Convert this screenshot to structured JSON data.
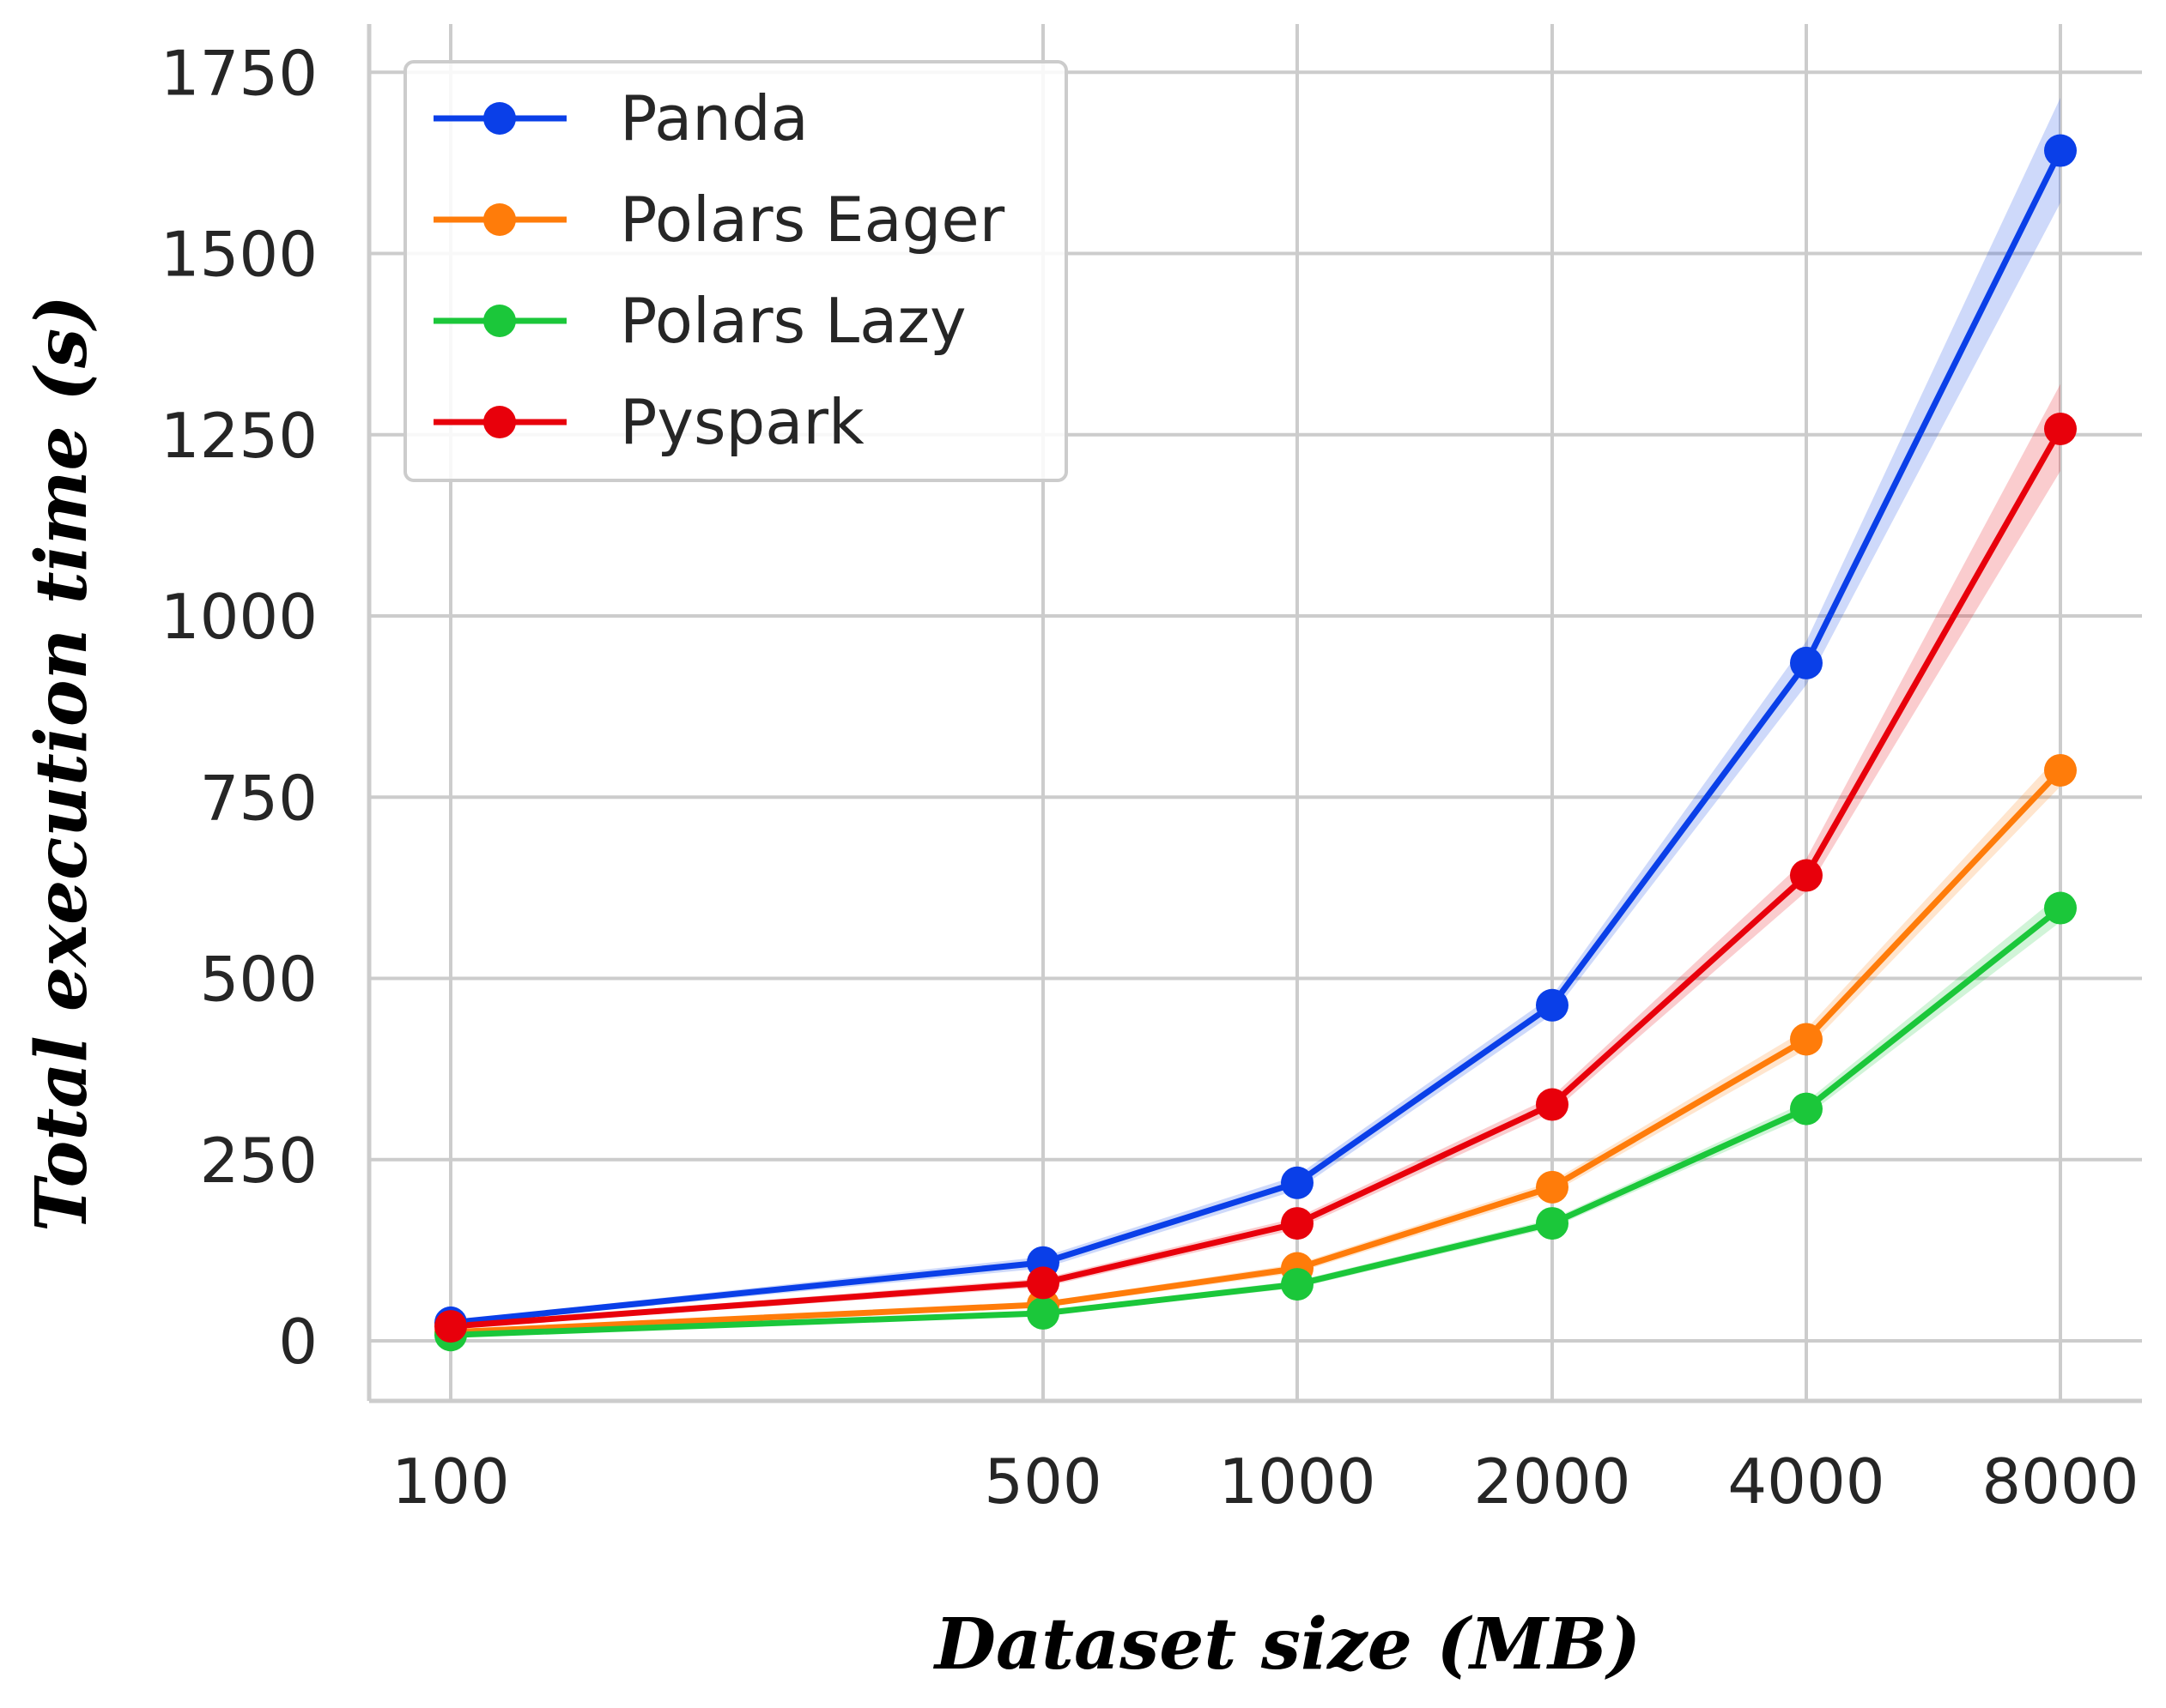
{
  "chart_data": {
    "type": "line",
    "title": "",
    "xlabel": "Dataset size (MB)",
    "ylabel": "Total execution time (s)",
    "x_scale": "log",
    "categories": [
      "100",
      "500",
      "1000",
      "2000",
      "4000",
      "8000"
    ],
    "x": [
      100,
      500,
      1000,
      2000,
      4000,
      8000
    ],
    "ylim": [
      -80,
      1800
    ],
    "yticks": [
      0,
      250,
      500,
      750,
      1000,
      1250,
      1500,
      1750
    ],
    "grid": true,
    "legend_position": "top-left",
    "series": [
      {
        "name": "Panda",
        "color": "#0a3fe8",
        "values": [
          25,
          108,
          218,
          463,
          935,
          1642
        ],
        "ci_low": [
          22,
          100,
          208,
          450,
          905,
          1570
        ],
        "ci_high": [
          28,
          116,
          228,
          476,
          965,
          1715
        ]
      },
      {
        "name": "Polars Eager",
        "color": "#ff7c0a",
        "values": [
          12,
          50,
          100,
          212,
          416,
          787
        ],
        "ci_low": [
          10,
          46,
          94,
          204,
          402,
          765
        ],
        "ci_high": [
          14,
          54,
          106,
          220,
          430,
          810
        ]
      },
      {
        "name": "Polars Lazy",
        "color": "#1bc73a",
        "values": [
          8,
          38,
          78,
          162,
          320,
          597
        ],
        "ci_low": [
          6,
          35,
          73,
          156,
          310,
          578
        ],
        "ci_high": [
          10,
          41,
          83,
          168,
          330,
          616
        ]
      },
      {
        "name": "Pyspark",
        "color": "#e8000b",
        "values": [
          20,
          80,
          162,
          326,
          642,
          1258
        ],
        "ci_low": [
          17,
          74,
          154,
          315,
          620,
          1200
        ],
        "ci_high": [
          23,
          86,
          170,
          337,
          665,
          1320
        ]
      }
    ]
  }
}
